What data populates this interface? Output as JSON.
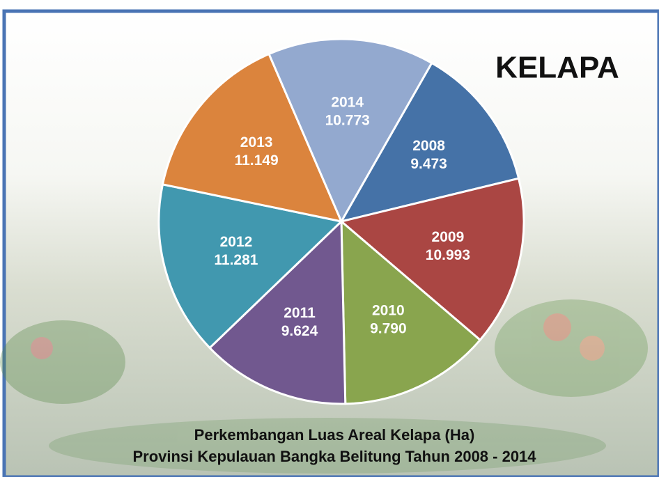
{
  "chart_data": {
    "type": "pie",
    "title": "KELAPA",
    "caption": [
      "Perkembangan Luas Areal Kelapa (Ha)",
      "Provinsi Kepulauan Bangka Belitung Tahun 2008 - 2014"
    ],
    "categories": [
      "2008",
      "2009",
      "2010",
      "2011",
      "2012",
      "2013",
      "2014"
    ],
    "values": [
      9473,
      10993,
      9790,
      9624,
      11281,
      11149,
      10773
    ],
    "value_labels": [
      "9.473",
      "10.993",
      "9.790",
      "9.624",
      "11.281",
      "11.149",
      "10.773"
    ],
    "colors": [
      "#4572a7",
      "#aa4643",
      "#89a54e",
      "#71588f",
      "#4198af",
      "#db843d",
      "#93a9cf"
    ]
  }
}
